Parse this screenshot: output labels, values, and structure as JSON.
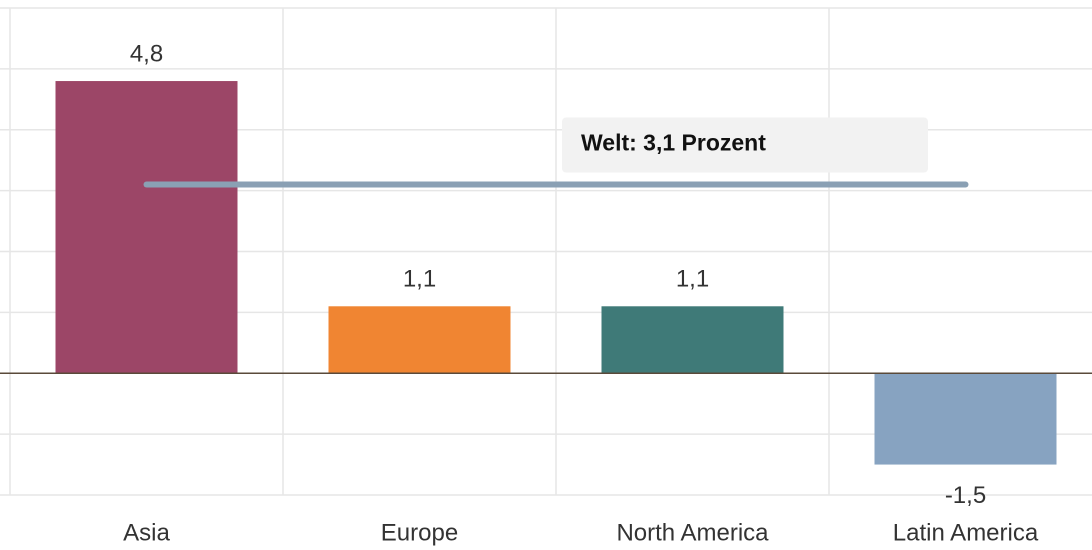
{
  "chart_data": {
    "type": "bar",
    "categories": [
      "Asia",
      "Europe",
      "North America",
      "Latin America"
    ],
    "values": [
      4.8,
      1.1,
      1.1,
      -1.5
    ],
    "value_labels": [
      "4,8",
      "1,1",
      "1,1",
      "-1,5"
    ],
    "colors": [
      "#9c4667",
      "#f08532",
      "#3f7a78",
      "#87a3c1"
    ],
    "ylim": [
      -2,
      6
    ],
    "yticks": [
      -2,
      -1,
      0,
      1,
      2,
      3,
      4,
      5,
      6
    ],
    "grid": true,
    "reference_line": {
      "value": 3.1,
      "label": "Welt: 3,1 Prozent",
      "color": "#8aa0b4"
    }
  }
}
